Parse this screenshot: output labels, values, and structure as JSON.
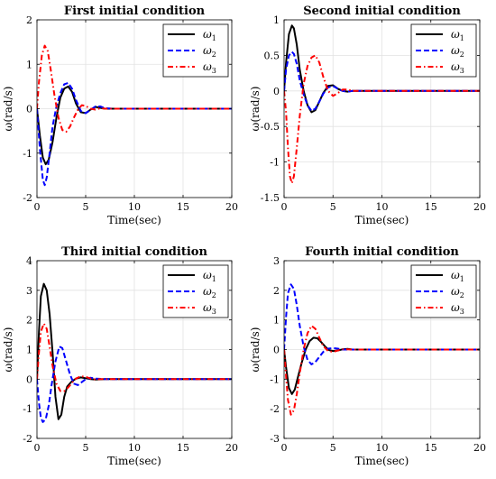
{
  "chart_data": [
    {
      "type": "line",
      "title": "First initial condition",
      "xlabel": "Time(sec)",
      "ylabel": "ω(rad/s)",
      "xlim": [
        0,
        20
      ],
      "ylim": [
        -2,
        2
      ],
      "xticks": [
        0,
        5,
        10,
        15,
        20
      ],
      "yticks": [
        -2,
        -1,
        0,
        1,
        2
      ],
      "grid": true,
      "legend": "top-right",
      "series": [
        {
          "name": "ω1",
          "color": "#000000",
          "dash": "solid",
          "x": [
            0,
            0.3,
            0.6,
            0.9,
            1.2,
            1.6,
            2.0,
            2.4,
            2.8,
            3.2,
            3.6,
            4.0,
            4.5,
            5.0,
            5.5,
            6.0,
            6.5,
            7.0,
            8.0,
            20
          ],
          "y": [
            0,
            -0.6,
            -1.1,
            -1.25,
            -1.15,
            -0.75,
            -0.2,
            0.25,
            0.45,
            0.5,
            0.38,
            0.12,
            -0.08,
            -0.1,
            -0.02,
            0.04,
            0.02,
            0,
            0,
            0
          ]
        },
        {
          "name": "ω2",
          "color": "#0000ff",
          "dash": "dashed",
          "x": [
            0,
            0.3,
            0.6,
            0.8,
            1.0,
            1.3,
            1.6,
            2.0,
            2.4,
            2.8,
            3.2,
            3.6,
            4.0,
            4.5,
            5.0,
            5.5,
            6.0,
            6.5,
            7.0,
            8.0,
            20
          ],
          "y": [
            0,
            -0.9,
            -1.6,
            -1.72,
            -1.55,
            -1.0,
            -0.4,
            0.05,
            0.35,
            0.55,
            0.58,
            0.45,
            0.2,
            -0.05,
            -0.1,
            -0.03,
            0.05,
            0.05,
            0.01,
            0,
            0
          ]
        },
        {
          "name": "ω3",
          "color": "#ff0000",
          "dash": "dashdot",
          "x": [
            0,
            0.2,
            0.5,
            0.8,
            1.1,
            1.4,
            1.8,
            2.2,
            2.6,
            3.0,
            3.4,
            3.8,
            4.2,
            4.6,
            5.0,
            5.5,
            6.0,
            6.5,
            7.0,
            8.0,
            20
          ],
          "y": [
            0,
            0.6,
            1.2,
            1.42,
            1.3,
            0.9,
            0.3,
            -0.2,
            -0.48,
            -0.52,
            -0.4,
            -0.2,
            -0.02,
            0.08,
            0.06,
            0,
            -0.02,
            0.01,
            0,
            0,
            0
          ]
        }
      ]
    },
    {
      "type": "line",
      "title": "Second initial condition",
      "xlabel": "Time(sec)",
      "ylabel": "ω(rad/s)",
      "xlim": [
        0,
        20
      ],
      "ylim": [
        -1.5,
        1
      ],
      "xticks": [
        0,
        5,
        10,
        15,
        20
      ],
      "yticks": [
        -1.5,
        -1,
        -0.5,
        0,
        0.5,
        1
      ],
      "grid": true,
      "legend": "top-right",
      "series": [
        {
          "name": "ω1",
          "color": "#000000",
          "dash": "solid",
          "x": [
            0,
            0.2,
            0.5,
            0.8,
            1.0,
            1.3,
            1.6,
            2.0,
            2.4,
            2.8,
            3.2,
            3.6,
            4.0,
            4.5,
            5.0,
            5.5,
            6.0,
            6.5,
            7.0,
            8.0,
            20
          ],
          "y": [
            0,
            0.4,
            0.8,
            0.92,
            0.88,
            0.65,
            0.3,
            0.0,
            -0.2,
            -0.3,
            -0.27,
            -0.15,
            -0.03,
            0.07,
            0.08,
            0.03,
            0,
            -0.01,
            0,
            0,
            0
          ]
        },
        {
          "name": "ω2",
          "color": "#0000ff",
          "dash": "dashed",
          "x": [
            0,
            0.2,
            0.5,
            0.8,
            1.0,
            1.3,
            1.6,
            2.0,
            2.4,
            2.8,
            3.2,
            3.6,
            4.0,
            4.5,
            5.0,
            5.5,
            6.0,
            6.5,
            7.0,
            8.0,
            20
          ],
          "y": [
            0,
            0.3,
            0.5,
            0.55,
            0.52,
            0.38,
            0.15,
            -0.05,
            -0.2,
            -0.28,
            -0.25,
            -0.15,
            -0.04,
            0.05,
            0.07,
            0.03,
            0,
            -0.01,
            0,
            0,
            0
          ]
        },
        {
          "name": "ω3",
          "color": "#ff0000",
          "dash": "dashdot",
          "x": [
            0,
            0.2,
            0.4,
            0.6,
            0.8,
            1.0,
            1.3,
            1.6,
            2.0,
            2.4,
            2.8,
            3.2,
            3.6,
            4.0,
            4.5,
            5.0,
            5.5,
            6.0,
            6.5,
            7.0,
            8.0,
            20
          ],
          "y": [
            0,
            -0.3,
            -0.8,
            -1.2,
            -1.3,
            -1.2,
            -0.8,
            -0.35,
            0.1,
            0.35,
            0.47,
            0.5,
            0.4,
            0.2,
            0.0,
            -0.07,
            -0.03,
            0.02,
            0.02,
            0,
            0,
            0
          ]
        }
      ]
    },
    {
      "type": "line",
      "title": "Third initial condition",
      "xlabel": "Time(sec)",
      "ylabel": "ω(rad/s)",
      "xlim": [
        0,
        20
      ],
      "ylim": [
        -2,
        4
      ],
      "xticks": [
        0,
        5,
        10,
        15,
        20
      ],
      "yticks": [
        -2,
        -1,
        0,
        1,
        2,
        3,
        4
      ],
      "grid": true,
      "legend": "top-right",
      "series": [
        {
          "name": "ω1",
          "color": "#000000",
          "dash": "solid",
          "x": [
            0,
            0.2,
            0.4,
            0.7,
            1.0,
            1.3,
            1.6,
            1.9,
            2.2,
            2.5,
            2.8,
            3.1,
            3.5,
            4.0,
            4.5,
            5.0,
            5.5,
            6.0,
            7.0,
            8.0,
            20
          ],
          "y": [
            0,
            1.6,
            2.8,
            3.22,
            3.0,
            2.2,
            0.9,
            -0.6,
            -1.35,
            -1.2,
            -0.6,
            -0.25,
            -0.1,
            0.02,
            0.06,
            0.03,
            0,
            -0.01,
            0,
            0,
            0
          ]
        },
        {
          "name": "ω2",
          "color": "#0000ff",
          "dash": "dashed",
          "x": [
            0,
            0.2,
            0.4,
            0.6,
            0.9,
            1.2,
            1.5,
            1.9,
            2.3,
            2.6,
            3.0,
            3.4,
            3.8,
            4.2,
            4.6,
            5.0,
            5.5,
            6.0,
            7.0,
            8.0,
            20
          ],
          "y": [
            0,
            -0.8,
            -1.3,
            -1.45,
            -1.35,
            -0.9,
            -0.2,
            0.6,
            1.1,
            1.05,
            0.6,
            0.15,
            -0.15,
            -0.2,
            -0.1,
            0,
            0.05,
            0.02,
            0,
            0,
            0
          ]
        },
        {
          "name": "ω3",
          "color": "#ff0000",
          "dash": "dashdot",
          "x": [
            0,
            0.2,
            0.4,
            0.7,
            1.0,
            1.3,
            1.6,
            2.0,
            2.4,
            2.8,
            3.2,
            3.6,
            4.0,
            4.5,
            5.0,
            5.5,
            6.0,
            6.5,
            7.0,
            8.0,
            20
          ],
          "y": [
            0,
            0.9,
            1.6,
            1.88,
            1.7,
            1.1,
            0.45,
            -0.15,
            -0.4,
            -0.4,
            -0.28,
            -0.12,
            0.02,
            0.1,
            0.08,
            0.02,
            -0.01,
            0,
            0,
            0,
            0
          ]
        }
      ]
    },
    {
      "type": "line",
      "title": "Fourth initial condition",
      "xlabel": "Time(sec)",
      "ylabel": "ω(rad/s)",
      "xlim": [
        0,
        20
      ],
      "ylim": [
        -3,
        3
      ],
      "xticks": [
        0,
        5,
        10,
        15,
        20
      ],
      "yticks": [
        -3,
        -2,
        -1,
        0,
        1,
        2,
        3
      ],
      "grid": true,
      "legend": "top-right",
      "series": [
        {
          "name": "ω1",
          "color": "#000000",
          "dash": "solid",
          "x": [
            0,
            0.2,
            0.5,
            0.8,
            1.1,
            1.4,
            1.8,
            2.2,
            2.6,
            3.0,
            3.4,
            3.8,
            4.2,
            4.6,
            5.0,
            5.5,
            6.0,
            6.5,
            7.0,
            8.0,
            20
          ],
          "y": [
            0,
            -0.6,
            -1.3,
            -1.5,
            -1.35,
            -0.95,
            -0.45,
            0.0,
            0.28,
            0.4,
            0.38,
            0.25,
            0.1,
            -0.02,
            -0.05,
            -0.03,
            0.01,
            0.02,
            0,
            0,
            0
          ]
        },
        {
          "name": "ω2",
          "color": "#0000ff",
          "dash": "dashed",
          "x": [
            0,
            0.2,
            0.4,
            0.7,
            1.0,
            1.3,
            1.6,
            2.0,
            2.4,
            2.8,
            3.2,
            3.6,
            4.0,
            4.5,
            5.0,
            5.5,
            6.0,
            6.5,
            7.0,
            8.0,
            20
          ],
          "y": [
            0,
            1.1,
            1.9,
            2.2,
            2.05,
            1.5,
            0.8,
            0.1,
            -0.35,
            -0.5,
            -0.42,
            -0.25,
            -0.08,
            0.03,
            0.05,
            0.03,
            0,
            0,
            0,
            0,
            0
          ]
        },
        {
          "name": "ω3",
          "color": "#ff0000",
          "dash": "dashdot",
          "x": [
            0,
            0.2,
            0.4,
            0.7,
            1.0,
            1.3,
            1.6,
            2.0,
            2.4,
            2.8,
            3.2,
            3.6,
            4.0,
            4.5,
            5.0,
            5.5,
            6.0,
            6.5,
            7.0,
            8.0,
            20
          ],
          "y": [
            0,
            -0.9,
            -1.7,
            -2.2,
            -2.05,
            -1.5,
            -0.8,
            0.0,
            0.55,
            0.8,
            0.7,
            0.4,
            0.12,
            -0.05,
            -0.08,
            -0.03,
            0.01,
            0.01,
            0,
            0,
            0
          ]
        }
      ]
    }
  ]
}
